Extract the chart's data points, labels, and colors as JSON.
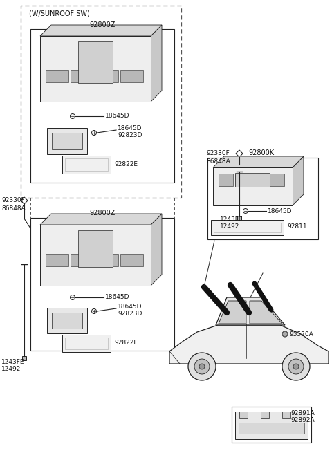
{
  "bg_color": "#ffffff",
  "line_color": "#222222",
  "sunroof_label": "(W/SUNROOF SW)",
  "part_92800Z": "92800Z",
  "part_18645D": "18645D",
  "part_92823D": "92823D",
  "part_92822E": "92822E",
  "part_92330F": "92330F",
  "part_86848A": "86848A",
  "part_92800K": "92800K",
  "part_1243FE": "1243FE",
  "part_12492": "12492",
  "part_92811": "92811",
  "part_95520A": "95520A",
  "part_92891A": "92891A",
  "part_92892A": "92892A"
}
